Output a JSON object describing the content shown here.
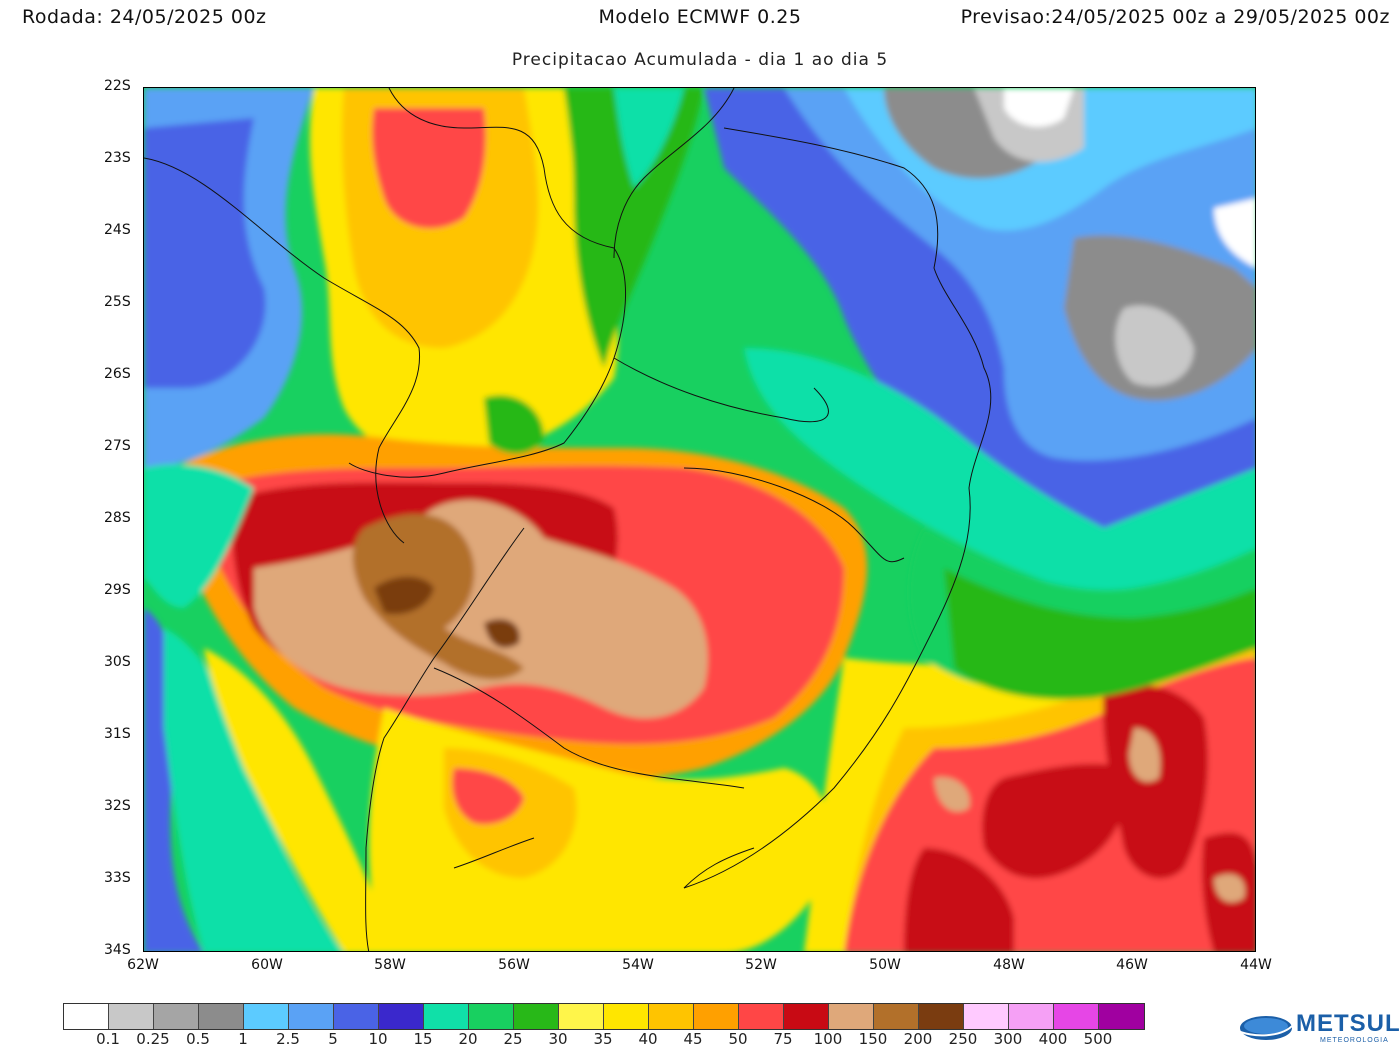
{
  "header": {
    "rodada_label": "Rodada:",
    "rodada_value": "24/05/2025 00z",
    "model": "Modelo ECMWF 0.25",
    "previsao_label": "Previsao:",
    "previsao_value": "24/05/2025 00z a 29/05/2025 00z"
  },
  "subtitle": "Precipitacao Acumulada - dia 1 ao dia 5",
  "axes": {
    "lat_labels": [
      "22S",
      "23S",
      "24S",
      "25S",
      "26S",
      "27S",
      "28S",
      "29S",
      "30S",
      "31S",
      "32S",
      "33S",
      "34S"
    ],
    "lon_labels": [
      "62W",
      "60W",
      "58W",
      "56W",
      "54W",
      "52W",
      "50W",
      "48W",
      "46W",
      "44W"
    ]
  },
  "colorbar": {
    "colors": [
      "#ffffff",
      "#c8c8c8",
      "#a5a5a5",
      "#8c8c8c",
      "#5ccbff",
      "#5aa2f5",
      "#4a63e6",
      "#3a28cc",
      "#10e0a8",
      "#18d060",
      "#28b818",
      "#fff54a",
      "#ffe600",
      "#ffc400",
      "#ffa000",
      "#ff4646",
      "#c80a14",
      "#dfa87a",
      "#b2702a",
      "#7a3c10",
      "#ffcaff",
      "#f5a0f5",
      "#e646e6",
      "#a000a0"
    ],
    "labels": [
      "0.1",
      "0.25",
      "0.5",
      "1",
      "2.5",
      "5",
      "10",
      "15",
      "20",
      "25",
      "30",
      "35",
      "40",
      "45",
      "50",
      "75",
      "100",
      "150",
      "200",
      "250",
      "300",
      "400",
      "500"
    ]
  },
  "logo": {
    "text": "METSUL",
    "subtext": "METEOROLOGIA"
  }
}
